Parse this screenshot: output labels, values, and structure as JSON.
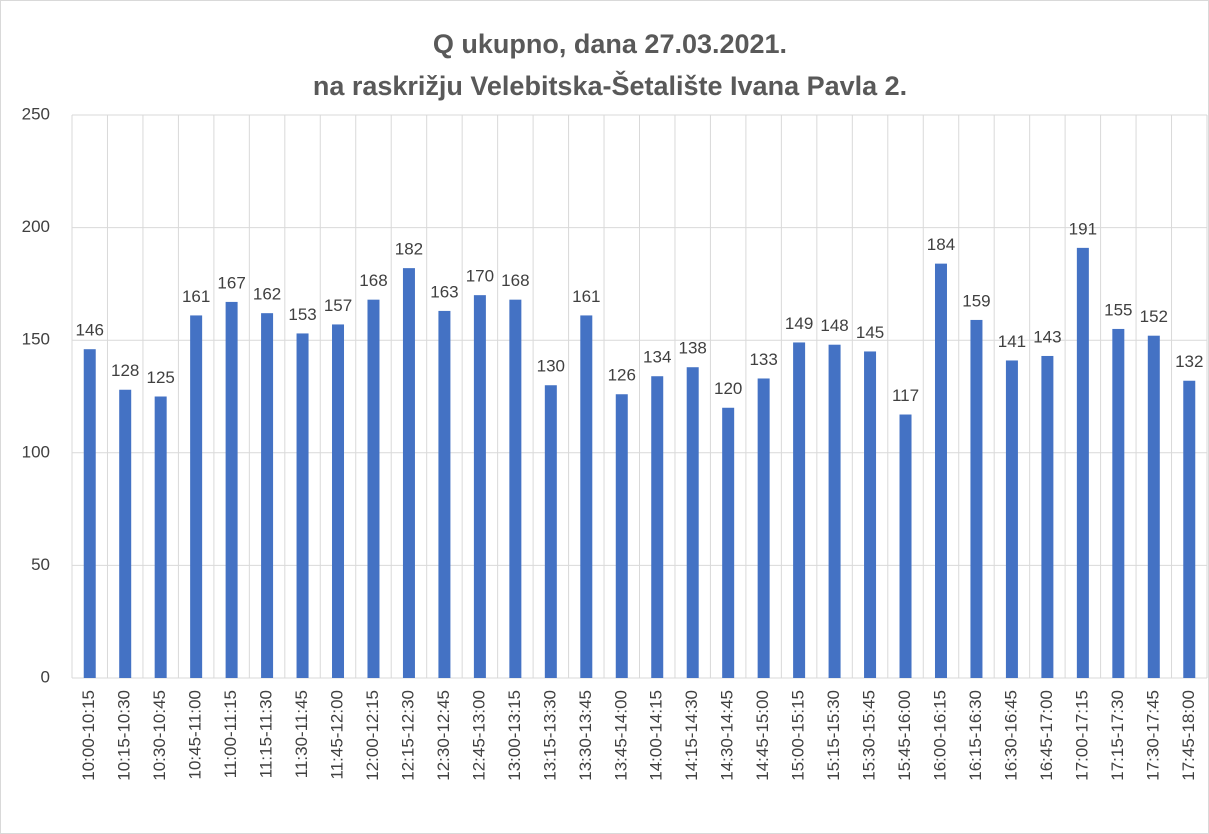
{
  "chart_data": {
    "type": "bar",
    "title": [
      "Q ukupno, dana 27.03.2021.",
      "na raskrižju Velebitska-Šetalište Ivana Pavla 2."
    ],
    "categories": [
      "10:00-10:15",
      "10:15-10:30",
      "10:30-10:45",
      "10:45-11:00",
      "11:00-11:15",
      "11:15-11:30",
      "11:30-11:45",
      "11:45-12:00",
      "12:00-12:15",
      "12:15-12:30",
      "12:30-12:45",
      "12:45-13:00",
      "13:00-13:15",
      "13:15-13:30",
      "13:30-13:45",
      "13:45-14:00",
      "14:00-14:15",
      "14:15-14:30",
      "14:30-14:45",
      "14:45-15:00",
      "15:00-15:15",
      "15:15-15:30",
      "15:30-15:45",
      "15:45-16:00",
      "16:00-16:15",
      "16:15-16:30",
      "16:30-16:45",
      "16:45-17:00",
      "17:00-17:15",
      "17:15-17:30",
      "17:30-17:45",
      "17:45-18:00"
    ],
    "values": [
      146,
      128,
      125,
      161,
      167,
      162,
      153,
      157,
      168,
      182,
      163,
      170,
      168,
      130,
      161,
      126,
      134,
      138,
      120,
      133,
      149,
      148,
      145,
      117,
      184,
      159,
      141,
      143,
      191,
      155,
      152,
      132
    ],
    "color": "#4472c4",
    "ylim": [
      0,
      250
    ],
    "yticks": [
      0,
      50,
      100,
      150,
      200,
      250
    ],
    "grid": true
  }
}
